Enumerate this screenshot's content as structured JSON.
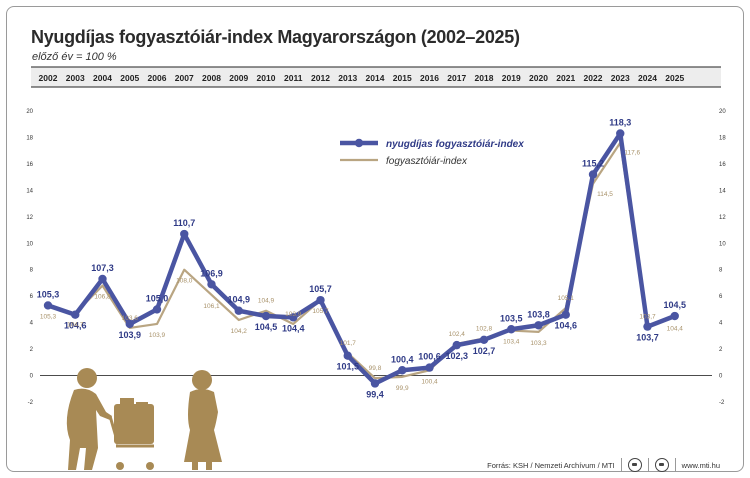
{
  "title": "Nyugdíjas fogyasztóiár-index Magyarországon (2002–2025)",
  "subtitle": "előző év = 100 %",
  "footer": {
    "source": "Forrás: KSH / Nemzeti Archívum / MTI",
    "logo1": "mti-logo-icon",
    "logo2": "mti-globe-icon",
    "website": "www.mti.hu"
  },
  "colors": {
    "pension_series": "#4a55a2",
    "cpi_series": "#b9a582",
    "cpi_label": "#a8926a",
    "silhouette": "#a88a55",
    "year_band": "#ededed"
  },
  "chart_data": {
    "type": "line",
    "title": "Nyugdíjas fogyasztóiár-index Magyarországon (2002–2025)",
    "subtitle": "előző év = 100 %",
    "xlabel": "",
    "ylabel": "",
    "categories": [
      "2002",
      "2003",
      "2004",
      "2005",
      "2006",
      "2007",
      "2008",
      "2009",
      "2010",
      "2011",
      "2012",
      "2013",
      "2014",
      "2015",
      "2016",
      "2017",
      "2018",
      "2019",
      "2020",
      "2021",
      "2022",
      "2023",
      "2024",
      "2025"
    ],
    "y_ticks": [
      -2,
      0,
      2,
      4,
      6,
      8,
      10,
      12,
      14,
      16,
      18,
      20
    ],
    "ylim": [
      -2,
      20
    ],
    "grid": false,
    "legend_position": "top-center",
    "series": [
      {
        "name": "nyugdíjas fogyasztóiár-index",
        "values": [
          5.3,
          4.6,
          7.3,
          3.9,
          5.0,
          10.7,
          6.9,
          4.9,
          4.5,
          4.4,
          5.7,
          1.5,
          -0.6,
          0.4,
          0.6,
          2.3,
          2.7,
          3.5,
          3.8,
          4.6,
          15.2,
          18.3,
          3.7,
          4.5
        ],
        "labels": [
          "105,3",
          "104,6",
          "107,3",
          "103,9",
          "105,0",
          "110,7",
          "106,9",
          "104,9",
          "104,5",
          "104,4",
          "105,7",
          "101,5",
          "99,4",
          "100,4",
          "100,6",
          "102,3",
          "102,7",
          "103,5",
          "103,8",
          "104,6",
          "115,2",
          "118,3",
          "103,7",
          "104,5"
        ]
      },
      {
        "name": "fogyasztóiár-index",
        "values": [
          5.3,
          4.7,
          6.8,
          3.6,
          3.9,
          8.0,
          6.1,
          4.2,
          4.9,
          3.9,
          5.7,
          1.7,
          -0.2,
          -0.1,
          0.4,
          2.4,
          2.8,
          3.4,
          3.3,
          5.1,
          14.5,
          17.6,
          3.7,
          4.4
        ],
        "labels": [
          "105,3",
          "104,7",
          "106,8",
          "103,6",
          "103,9",
          "108,0",
          "106,1",
          "104,2",
          "104,9",
          "103,9",
          "105,7",
          "101,7",
          "99,8",
          "99,9",
          "100,4",
          "102,4",
          "102,8",
          "103,4",
          "103,3",
          "105,1",
          "114,5",
          "117,6",
          "103,7",
          "104,4"
        ]
      }
    ]
  }
}
